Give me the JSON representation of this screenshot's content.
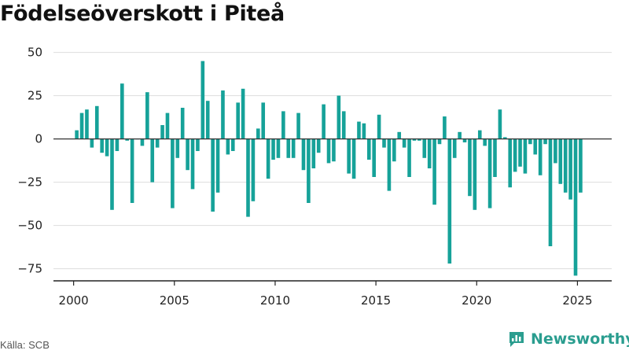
{
  "title": "Födelseöverskott i Piteå",
  "source": "Källa: SCB",
  "brand": {
    "name": "Newsworthy",
    "logo_icon": "newsworthy-logo-icon"
  },
  "colors": {
    "bar": "#16a299",
    "grid": "#dddddd",
    "zero_line": "#333333",
    "brand": "#2a9d8f"
  },
  "chart_data": {
    "type": "bar",
    "title": "Födelseöverskott i Piteå",
    "xlabel": "",
    "ylabel": "",
    "x_ticks": [
      "2000",
      "2005",
      "2010",
      "2015",
      "2020",
      "2025"
    ],
    "y_ticks": [
      "50",
      "25",
      "0",
      "−25",
      "−50",
      "−75"
    ],
    "y_tick_values": [
      50,
      25,
      0,
      -25,
      -50,
      -75
    ],
    "ylim": [
      -82,
      53
    ],
    "xlim": [
      1999.0,
      2026.7
    ],
    "grid": true,
    "frequency": "quarterly",
    "start": "2000 Q1",
    "values": [
      5,
      15,
      17,
      -5,
      19,
      -8,
      -10,
      -41,
      -7,
      32,
      -1,
      -37,
      0,
      -4,
      27,
      -25,
      -5,
      8,
      15,
      -40,
      -11,
      18,
      -18,
      -29,
      -7,
      45,
      22,
      -42,
      -31,
      28,
      -9,
      -7,
      21,
      29,
      -45,
      -36,
      6,
      21,
      -23,
      -12,
      -11,
      16,
      -11,
      -11,
      15,
      -18,
      -37,
      -17,
      -8,
      20,
      -14,
      -13,
      25,
      16,
      -20,
      -23,
      10,
      9,
      -12,
      -22,
      14,
      -5,
      -30,
      -13,
      4,
      -5,
      -22,
      -1,
      -1,
      -11,
      -17,
      -38,
      -3,
      13,
      -72,
      -11,
      4,
      -2,
      -33,
      -41,
      5,
      -4,
      -40,
      -22,
      17,
      1,
      -28,
      -19,
      -16,
      -20,
      -3,
      -9,
      -21,
      -3,
      -62,
      -14,
      -26,
      -31,
      -35,
      -79,
      -31
    ]
  }
}
